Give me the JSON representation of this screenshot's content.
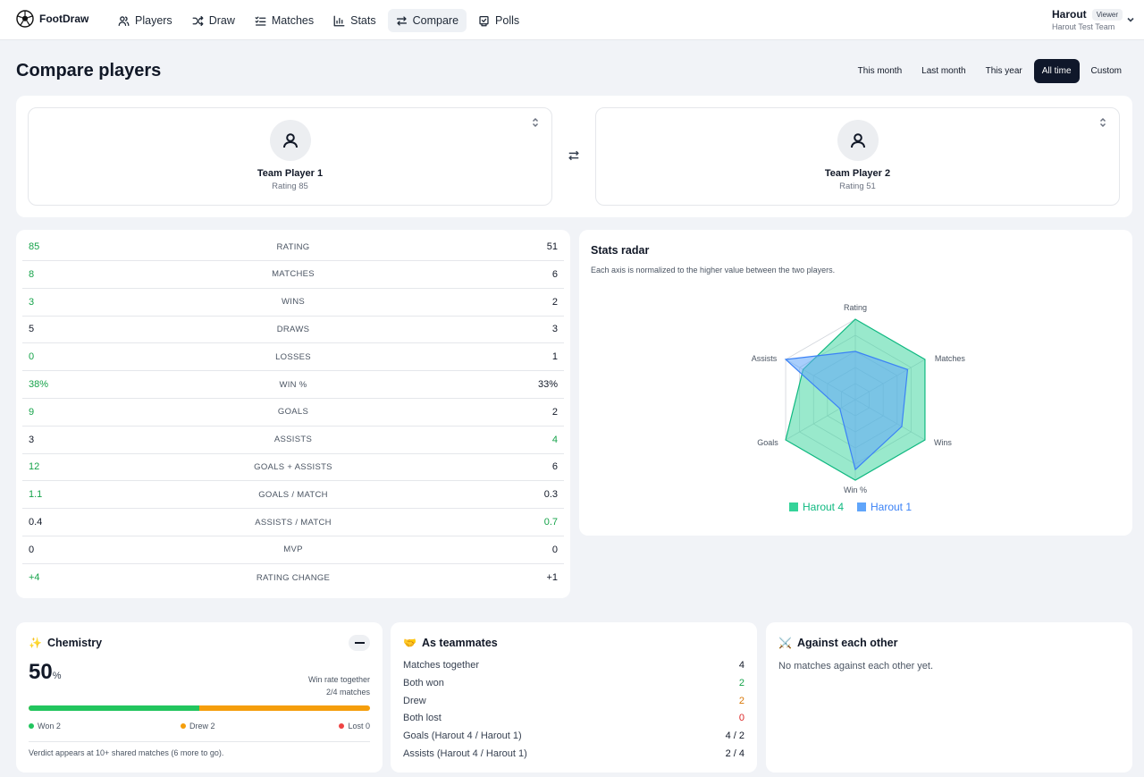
{
  "app": {
    "name": "FootDraw"
  },
  "nav": [
    {
      "label": "Players",
      "icon": "users-icon"
    },
    {
      "label": "Draw",
      "icon": "shuffle-icon"
    },
    {
      "label": "Matches",
      "icon": "list-icon"
    },
    {
      "label": "Stats",
      "icon": "bar-chart-icon"
    },
    {
      "label": "Compare",
      "icon": "swap-icon",
      "active": true
    },
    {
      "label": "Polls",
      "icon": "poll-icon"
    }
  ],
  "user": {
    "name": "Harout",
    "role": "Viewer",
    "team": "Harout Test Team"
  },
  "page": {
    "title": "Compare players"
  },
  "ranges": [
    "This month",
    "Last month",
    "This year",
    "All time",
    "Custom"
  ],
  "active_range": "All time",
  "players": [
    {
      "name": "Team Player 1",
      "rating": "Rating 85"
    },
    {
      "name": "Team Player 2",
      "rating": "Rating 51"
    }
  ],
  "stats": [
    {
      "label": "RATING",
      "left": "85",
      "right": "51",
      "winner": "left"
    },
    {
      "label": "MATCHES",
      "left": "8",
      "right": "6",
      "winner": "left"
    },
    {
      "label": "WINS",
      "left": "3",
      "right": "2",
      "winner": "left"
    },
    {
      "label": "DRAWS",
      "left": "5",
      "right": "3",
      "winner": "none"
    },
    {
      "label": "LOSSES",
      "left": "0",
      "right": "1",
      "winner": "left"
    },
    {
      "label": "WIN %",
      "left": "38%",
      "right": "33%",
      "winner": "left"
    },
    {
      "label": "GOALS",
      "left": "9",
      "right": "2",
      "winner": "left"
    },
    {
      "label": "ASSISTS",
      "left": "3",
      "right": "4",
      "winner": "right"
    },
    {
      "label": "GOALS + ASSISTS",
      "left": "12",
      "right": "6",
      "winner": "left"
    },
    {
      "label": "GOALS / MATCH",
      "left": "1.1",
      "right": "0.3",
      "winner": "left"
    },
    {
      "label": "ASSISTS / MATCH",
      "left": "0.4",
      "right": "0.7",
      "winner": "right"
    },
    {
      "label": "MVP",
      "left": "0",
      "right": "0",
      "winner": "none"
    },
    {
      "label": "RATING CHANGE",
      "left": "+4",
      "right": "+1",
      "winner": "left"
    }
  ],
  "radar": {
    "title": "Stats radar",
    "subtitle": "Each axis is normalized to the higher value between the two players."
  },
  "chart_data": {
    "type": "radar",
    "axes": [
      "Rating",
      "Matches",
      "Wins",
      "Win %",
      "Goals",
      "Assists"
    ],
    "range": [
      0,
      1
    ],
    "series": [
      {
        "name": "Harout 4",
        "color": "#34d399",
        "values": [
          1.0,
          1.0,
          1.0,
          1.0,
          1.0,
          0.75
        ]
      },
      {
        "name": "Harout 1",
        "color": "#60a5fa",
        "values": [
          0.6,
          0.75,
          0.667,
          0.868,
          0.222,
          1.0
        ]
      }
    ]
  },
  "chemistry": {
    "title": "Chemistry",
    "percent": "50",
    "percent_sign": "%",
    "side_label": "Win rate together",
    "side_value": "2/4 matches",
    "won_fraction": 0.5,
    "won": "Won 2",
    "drew": "Drew 2",
    "lost": "Lost 0",
    "footer": "Verdict appears at 10+ shared matches (6 more to go)."
  },
  "teammates": {
    "title": "As teammates",
    "rows": [
      {
        "label": "Matches together",
        "value": "4"
      },
      {
        "label": "Both won",
        "value": "2"
      },
      {
        "label": "Drew",
        "value": "2"
      },
      {
        "label": "Both lost",
        "value": "0"
      },
      {
        "label": "Goals (Harout 4 / Harout 1)",
        "value": "4 / 2"
      },
      {
        "label": "Assists (Harout 4 / Harout 1)",
        "value": "2 / 4"
      }
    ]
  },
  "against": {
    "title": "Against each other",
    "empty": "No matches against each other yet."
  },
  "colors": {
    "win": "#16a34a",
    "won": "#22c55e",
    "drew": "#f59e0b",
    "lost": "#ef4444",
    "active_bg": "#0f172a"
  }
}
